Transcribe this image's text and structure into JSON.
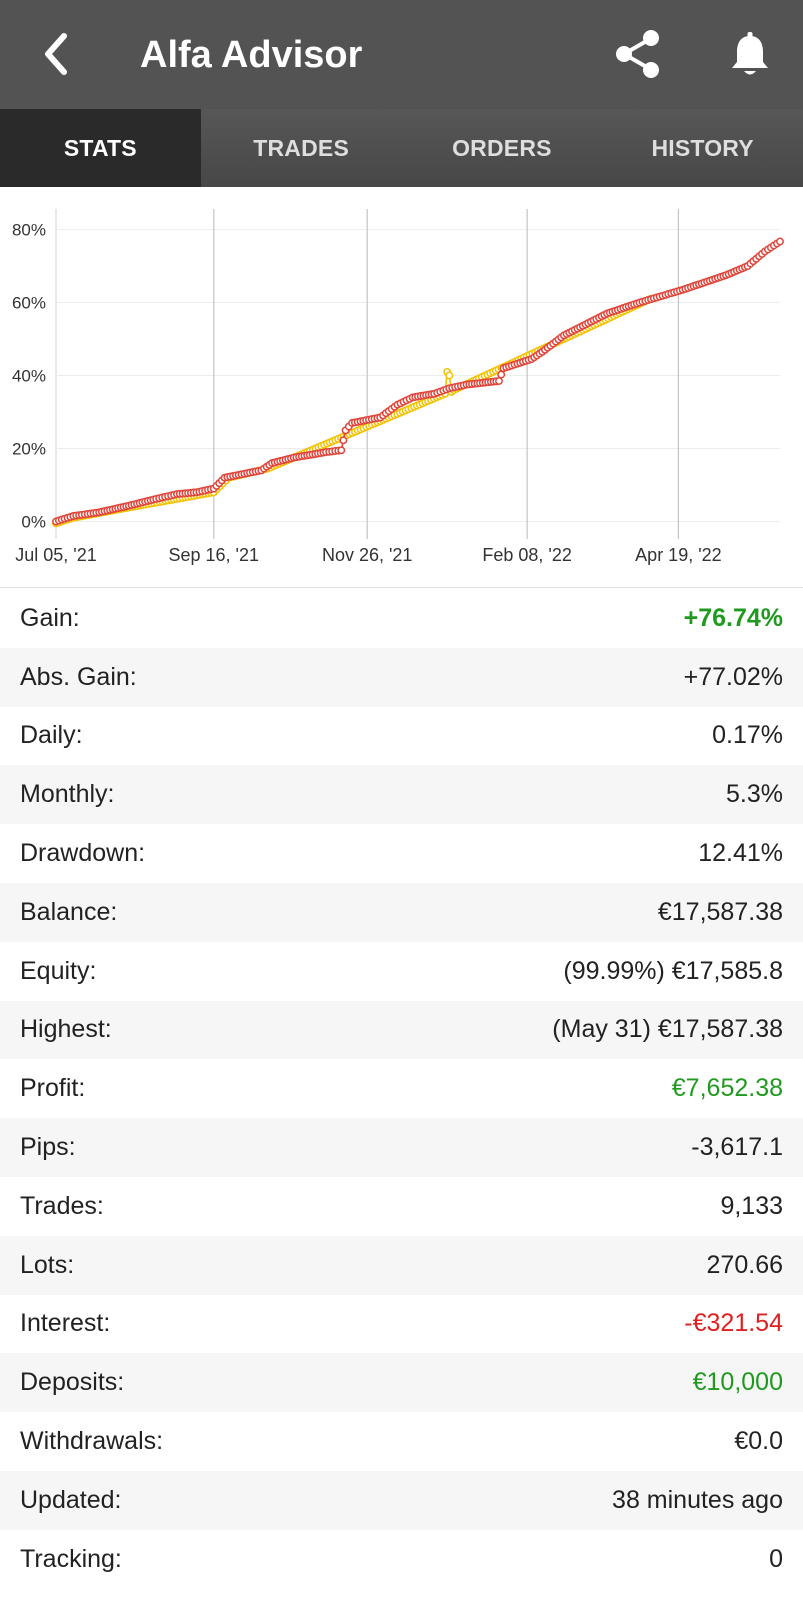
{
  "appbar": {
    "title": "Alfa Advisor",
    "back_icon": "chevron-left-icon",
    "share_icon": "share-icon",
    "bell_icon": "bell-icon"
  },
  "tabs": [
    {
      "label": "STATS",
      "active": true
    },
    {
      "label": "TRADES",
      "active": false
    },
    {
      "label": "ORDERS",
      "active": false
    },
    {
      "label": "HISTORY",
      "active": false
    }
  ],
  "chart_data": {
    "type": "line",
    "ytick_labels": [
      "0%",
      "20%",
      "40%",
      "60%",
      "80%"
    ],
    "yticks": [
      0,
      20,
      40,
      60,
      80
    ],
    "ylim": [
      -7,
      84
    ],
    "xtick_labels": [
      "Jul 05, '21",
      "Sep 16, '21",
      "Nov 26, '21",
      "Feb 08, '22",
      "Apr 19, '22"
    ],
    "xticks": [
      0,
      73,
      144,
      218,
      288
    ],
    "xlim": [
      0,
      335
    ],
    "grid": true,
    "series": [
      {
        "color": "#e0443a",
        "x": [
          0,
          8,
          20,
          35,
          45,
          56,
          65,
          73,
          78,
          95,
          100,
          110,
          125,
          132,
          134,
          137,
          150,
          158,
          165,
          175,
          182,
          190,
          205,
          207,
          220,
          225,
          235,
          250,
          255,
          270,
          290,
          300,
          310,
          320,
          328,
          335
        ],
        "y": [
          0,
          1.5,
          2.5,
          4.5,
          6,
          7.5,
          8,
          9,
          12,
          14,
          16,
          17.5,
          19,
          19.5,
          25,
          27,
          28.5,
          32,
          34,
          35,
          36.5,
          37.5,
          38.5,
          42,
          44.5,
          46.5,
          51,
          55.5,
          57,
          60,
          63.5,
          65.5,
          67.5,
          70,
          74,
          76.74
        ]
      },
      {
        "color": "#f2c200",
        "x": [
          0,
          8,
          40,
          73,
          80,
          98,
          180,
          181,
          182,
          183,
          184,
          275
        ],
        "y": [
          -0.5,
          1,
          4.5,
          8,
          12,
          14.5,
          35,
          41,
          40,
          35.5,
          36,
          61
        ]
      }
    ]
  },
  "stats": [
    {
      "label": "Gain:",
      "value": "+76.74%",
      "color": "green",
      "bold": true
    },
    {
      "label": "Abs. Gain:",
      "value": "+77.02%"
    },
    {
      "label": "Daily:",
      "value": "0.17%"
    },
    {
      "label": "Monthly:",
      "value": "5.3%"
    },
    {
      "label": "Drawdown:",
      "value": "12.41%"
    },
    {
      "label": "Balance:",
      "value": "€17,587.38"
    },
    {
      "label": "Equity:",
      "value": "(99.99%) €17,585.8"
    },
    {
      "label": "Highest:",
      "value": "(May 31) €17,587.38"
    },
    {
      "label": "Profit:",
      "value": "€7,652.38",
      "color": "green"
    },
    {
      "label": "Pips:",
      "value": "-3,617.1"
    },
    {
      "label": "Trades:",
      "value": "9,133"
    },
    {
      "label": "Lots:",
      "value": "270.66"
    },
    {
      "label": "Interest:",
      "value": "-€321.54",
      "color": "red"
    },
    {
      "label": "Deposits:",
      "value": "€10,000",
      "color": "green"
    },
    {
      "label": "Withdrawals:",
      "value": "€0.0"
    },
    {
      "label": "Updated:",
      "value": "38 minutes ago"
    },
    {
      "label": "Tracking:",
      "value": "0"
    }
  ]
}
